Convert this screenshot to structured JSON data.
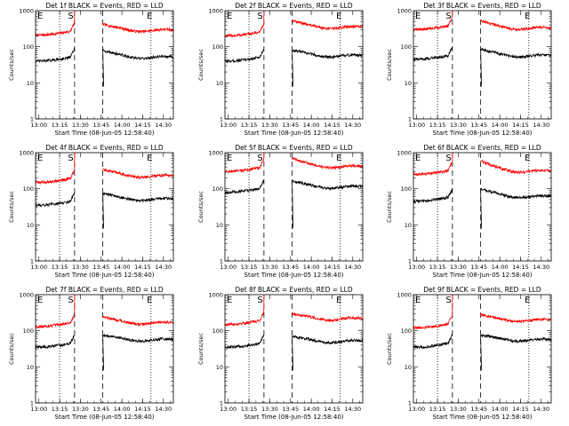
{
  "chart_data": [
    {
      "type": "line",
      "title": "Det 1f BLACK = Events, RED = LLD",
      "xlabel": "Start Time (08-Jun-05 12:58:40)",
      "ylabel": "Counts/sec",
      "yscale": "log",
      "ylim": [
        1,
        1000
      ],
      "ytick_labels": [
        "1",
        "10",
        "100",
        "1000"
      ],
      "xlim": [
        12.96,
        14.62
      ],
      "xtick_labels": [
        "13:00",
        "13:15",
        "13:30",
        "13:45",
        "14:00",
        "14:15",
        "14:30"
      ],
      "xticks": [
        13.0,
        13.25,
        13.5,
        13.75,
        14.0,
        14.25,
        14.5
      ],
      "markers": {
        "dotted": [
          13.25,
          14.35
        ],
        "dashed": [
          13.43,
          13.77
        ],
        "labels": [
          "E",
          "S",
          "E"
        ]
      },
      "series": [
        {
          "name": "LLD",
          "color": "#ff0000",
          "base": 280,
          "early": 210,
          "peakend": 420
        },
        {
          "name": "Events",
          "color": "#000000",
          "base": 50,
          "early": 40,
          "peakend": 80
        }
      ]
    },
    {
      "type": "line",
      "title": "Det 2f BLACK = Events, RED = LLD",
      "xlabel": "Start Time (08-Jun-05 12:58:40)",
      "ylabel": "Counts/sec",
      "yscale": "log",
      "ylim": [
        1,
        1000
      ],
      "ytick_labels": [
        "1",
        "10",
        "100",
        "1000"
      ],
      "xlim": [
        12.96,
        14.62
      ],
      "xtick_labels": [
        "13:00",
        "13:15",
        "13:30",
        "13:45",
        "14:00",
        "14:15",
        "14:30"
      ],
      "xticks": [
        13.0,
        13.25,
        13.5,
        13.75,
        14.0,
        14.25,
        14.5
      ],
      "markers": {
        "dotted": [
          13.25,
          14.35
        ],
        "dashed": [
          13.43,
          13.77
        ],
        "labels": [
          "E",
          "S",
          "E"
        ]
      },
      "series": [
        {
          "name": "LLD",
          "color": "#ff0000",
          "base": 340,
          "early": 200,
          "peakend": 520
        },
        {
          "name": "Events",
          "color": "#000000",
          "base": 55,
          "early": 40,
          "peakend": 80
        }
      ]
    },
    {
      "type": "line",
      "title": "Det 3f BLACK = Events, RED = LLD",
      "xlabel": "Start Time (08-Jun-05 12:58:40)",
      "ylabel": "Counts/sec",
      "yscale": "log",
      "ylim": [
        1,
        1000
      ],
      "ytick_labels": [
        "1",
        "10",
        "100",
        "1000"
      ],
      "xlim": [
        12.96,
        14.62
      ],
      "xtick_labels": [
        "13:00",
        "13:15",
        "13:30",
        "13:45",
        "14:00",
        "14:15",
        "14:30"
      ],
      "xticks": [
        13.0,
        13.25,
        13.5,
        13.75,
        14.0,
        14.25,
        14.5
      ],
      "markers": {
        "dotted": [
          13.25,
          14.35
        ],
        "dashed": [
          13.43,
          13.77
        ],
        "labels": [
          "E",
          "S",
          "E"
        ]
      },
      "series": [
        {
          "name": "LLD",
          "color": "#ff0000",
          "base": 320,
          "early": 300,
          "peakend": 520
        },
        {
          "name": "Events",
          "color": "#000000",
          "base": 55,
          "early": 45,
          "peakend": 85
        }
      ]
    },
    {
      "type": "line",
      "title": "Det 4f BLACK = Events, RED = LLD",
      "xlabel": "Start Time (08-Jun-05 12:58:40)",
      "ylabel": "Counts/sec",
      "yscale": "log",
      "ylim": [
        1,
        1000
      ],
      "ytick_labels": [
        "1",
        "10",
        "100",
        "1000"
      ],
      "xlim": [
        12.96,
        14.62
      ],
      "xtick_labels": [
        "13:00",
        "13:15",
        "13:30",
        "13:45",
        "14:00",
        "14:15",
        "14:30"
      ],
      "xticks": [
        13.0,
        13.25,
        13.5,
        13.75,
        14.0,
        14.25,
        14.5
      ],
      "markers": {
        "dotted": [
          13.25,
          14.35
        ],
        "dashed": [
          13.43,
          13.77
        ],
        "labels": [
          "E",
          "S",
          "E"
        ]
      },
      "series": [
        {
          "name": "LLD",
          "color": "#ff0000",
          "base": 220,
          "early": 150,
          "peakend": 340
        },
        {
          "name": "Events",
          "color": "#000000",
          "base": 50,
          "early": 35,
          "peakend": 75
        }
      ]
    },
    {
      "type": "line",
      "title": "Det 5f BLACK = Events, RED = LLD",
      "xlabel": "Start Time (08-Jun-05 12:58:40)",
      "ylabel": "Counts/sec",
      "yscale": "log",
      "ylim": [
        1,
        1000
      ],
      "ytick_labels": [
        "1",
        "10",
        "100",
        "1000"
      ],
      "xlim": [
        12.96,
        14.62
      ],
      "xtick_labels": [
        "13:00",
        "13:15",
        "13:30",
        "13:45",
        "14:00",
        "14:15",
        "14:30"
      ],
      "xticks": [
        13.0,
        13.25,
        13.5,
        13.75,
        14.0,
        14.25,
        14.5
      ],
      "markers": {
        "dotted": [
          13.25,
          14.35
        ],
        "dashed": [
          13.43,
          13.77
        ],
        "labels": [
          "E",
          "S",
          "E"
        ]
      },
      "series": [
        {
          "name": "LLD",
          "color": "#ff0000",
          "base": 400,
          "early": 300,
          "peakend": 700
        },
        {
          "name": "Events",
          "color": "#000000",
          "base": 110,
          "early": 80,
          "peakend": 160
        }
      ]
    },
    {
      "type": "line",
      "title": "Det 6f BLACK = Events, RED = LLD",
      "xlabel": "Start Time (08-Jun-05 12:58:40)",
      "ylabel": "Counts/sec",
      "yscale": "log",
      "ylim": [
        1,
        1000
      ],
      "ytick_labels": [
        "1",
        "10",
        "100",
        "1000"
      ],
      "xlim": [
        12.96,
        14.62
      ],
      "xtick_labels": [
        "13:00",
        "13:15",
        "13:30",
        "13:45",
        "14:00",
        "14:15",
        "14:30"
      ],
      "xticks": [
        13.0,
        13.25,
        13.5,
        13.75,
        14.0,
        14.25,
        14.5
      ],
      "markers": {
        "dotted": [
          13.25,
          14.35
        ],
        "dashed": [
          13.43,
          13.77
        ],
        "labels": [
          "E",
          "S",
          "E"
        ]
      },
      "series": [
        {
          "name": "LLD",
          "color": "#ff0000",
          "base": 300,
          "early": 250,
          "peakend": 600
        },
        {
          "name": "Events",
          "color": "#000000",
          "base": 60,
          "early": 45,
          "peakend": 100
        }
      ]
    },
    {
      "type": "line",
      "title": "Det 7f BLACK = Events, RED = LLD",
      "xlabel": "Start Time (08-Jun-05 12:58:40)",
      "ylabel": "Counts/sec",
      "yscale": "log",
      "ylim": [
        1,
        1000
      ],
      "ytick_labels": [
        "1",
        "10",
        "100",
        "1000"
      ],
      "xlim": [
        12.96,
        14.62
      ],
      "xtick_labels": [
        "13:00",
        "13:15",
        "13:30",
        "13:45",
        "14:00",
        "14:15",
        "14:30"
      ],
      "xticks": [
        13.0,
        13.25,
        13.5,
        13.75,
        14.0,
        14.25,
        14.5
      ],
      "markers": {
        "dotted": [
          13.25,
          14.35
        ],
        "dashed": [
          13.43,
          13.77
        ],
        "labels": [
          "E",
          "S",
          "E"
        ]
      },
      "series": [
        {
          "name": "LLD",
          "color": "#ff0000",
          "base": 160,
          "early": 130,
          "peakend": 250
        },
        {
          "name": "Events",
          "color": "#000000",
          "base": 55,
          "early": 35,
          "peakend": 75
        }
      ]
    },
    {
      "type": "line",
      "title": "Det 8f BLACK = Events, RED = LLD",
      "xlabel": "Start Time (08-Jun-05 12:58:40)",
      "ylabel": "Counts/sec",
      "yscale": "log",
      "ylim": [
        1,
        1000
      ],
      "ytick_labels": [
        "1",
        "10",
        "100",
        "1000"
      ],
      "xlim": [
        12.96,
        14.62
      ],
      "xtick_labels": [
        "13:00",
        "13:15",
        "13:30",
        "13:45",
        "14:00",
        "14:15",
        "14:30"
      ],
      "xticks": [
        13.0,
        13.25,
        13.5,
        13.75,
        14.0,
        14.25,
        14.5
      ],
      "markers": {
        "dotted": [
          13.25,
          14.35
        ],
        "dashed": [
          13.43,
          13.77
        ],
        "labels": [
          "E",
          "S",
          "E"
        ]
      },
      "series": [
        {
          "name": "LLD",
          "color": "#ff0000",
          "base": 210,
          "early": 150,
          "peakend": 300
        },
        {
          "name": "Events",
          "color": "#000000",
          "base": 50,
          "early": 35,
          "peakend": 70
        }
      ]
    },
    {
      "type": "line",
      "title": "Det 9f BLACK = Events, RED = LLD",
      "xlabel": "Start Time (08-Jun-05 12:58:40)",
      "ylabel": "Counts/sec",
      "yscale": "log",
      "ylim": [
        1,
        1000
      ],
      "ytick_labels": [
        "1",
        "10",
        "100",
        "1000"
      ],
      "xlim": [
        12.96,
        14.62
      ],
      "xtick_labels": [
        "13:00",
        "13:15",
        "13:30",
        "13:45",
        "14:00",
        "14:15",
        "14:30"
      ],
      "xticks": [
        13.0,
        13.25,
        13.5,
        13.75,
        14.0,
        14.25,
        14.5
      ],
      "markers": {
        "dotted": [
          13.25,
          14.35
        ],
        "dashed": [
          13.43,
          13.77
        ],
        "labels": [
          "E",
          "S",
          "E"
        ]
      },
      "series": [
        {
          "name": "LLD",
          "color": "#ff0000",
          "base": 190,
          "early": 120,
          "peakend": 280
        },
        {
          "name": "Events",
          "color": "#000000",
          "base": 55,
          "early": 35,
          "peakend": 75
        }
      ]
    }
  ]
}
